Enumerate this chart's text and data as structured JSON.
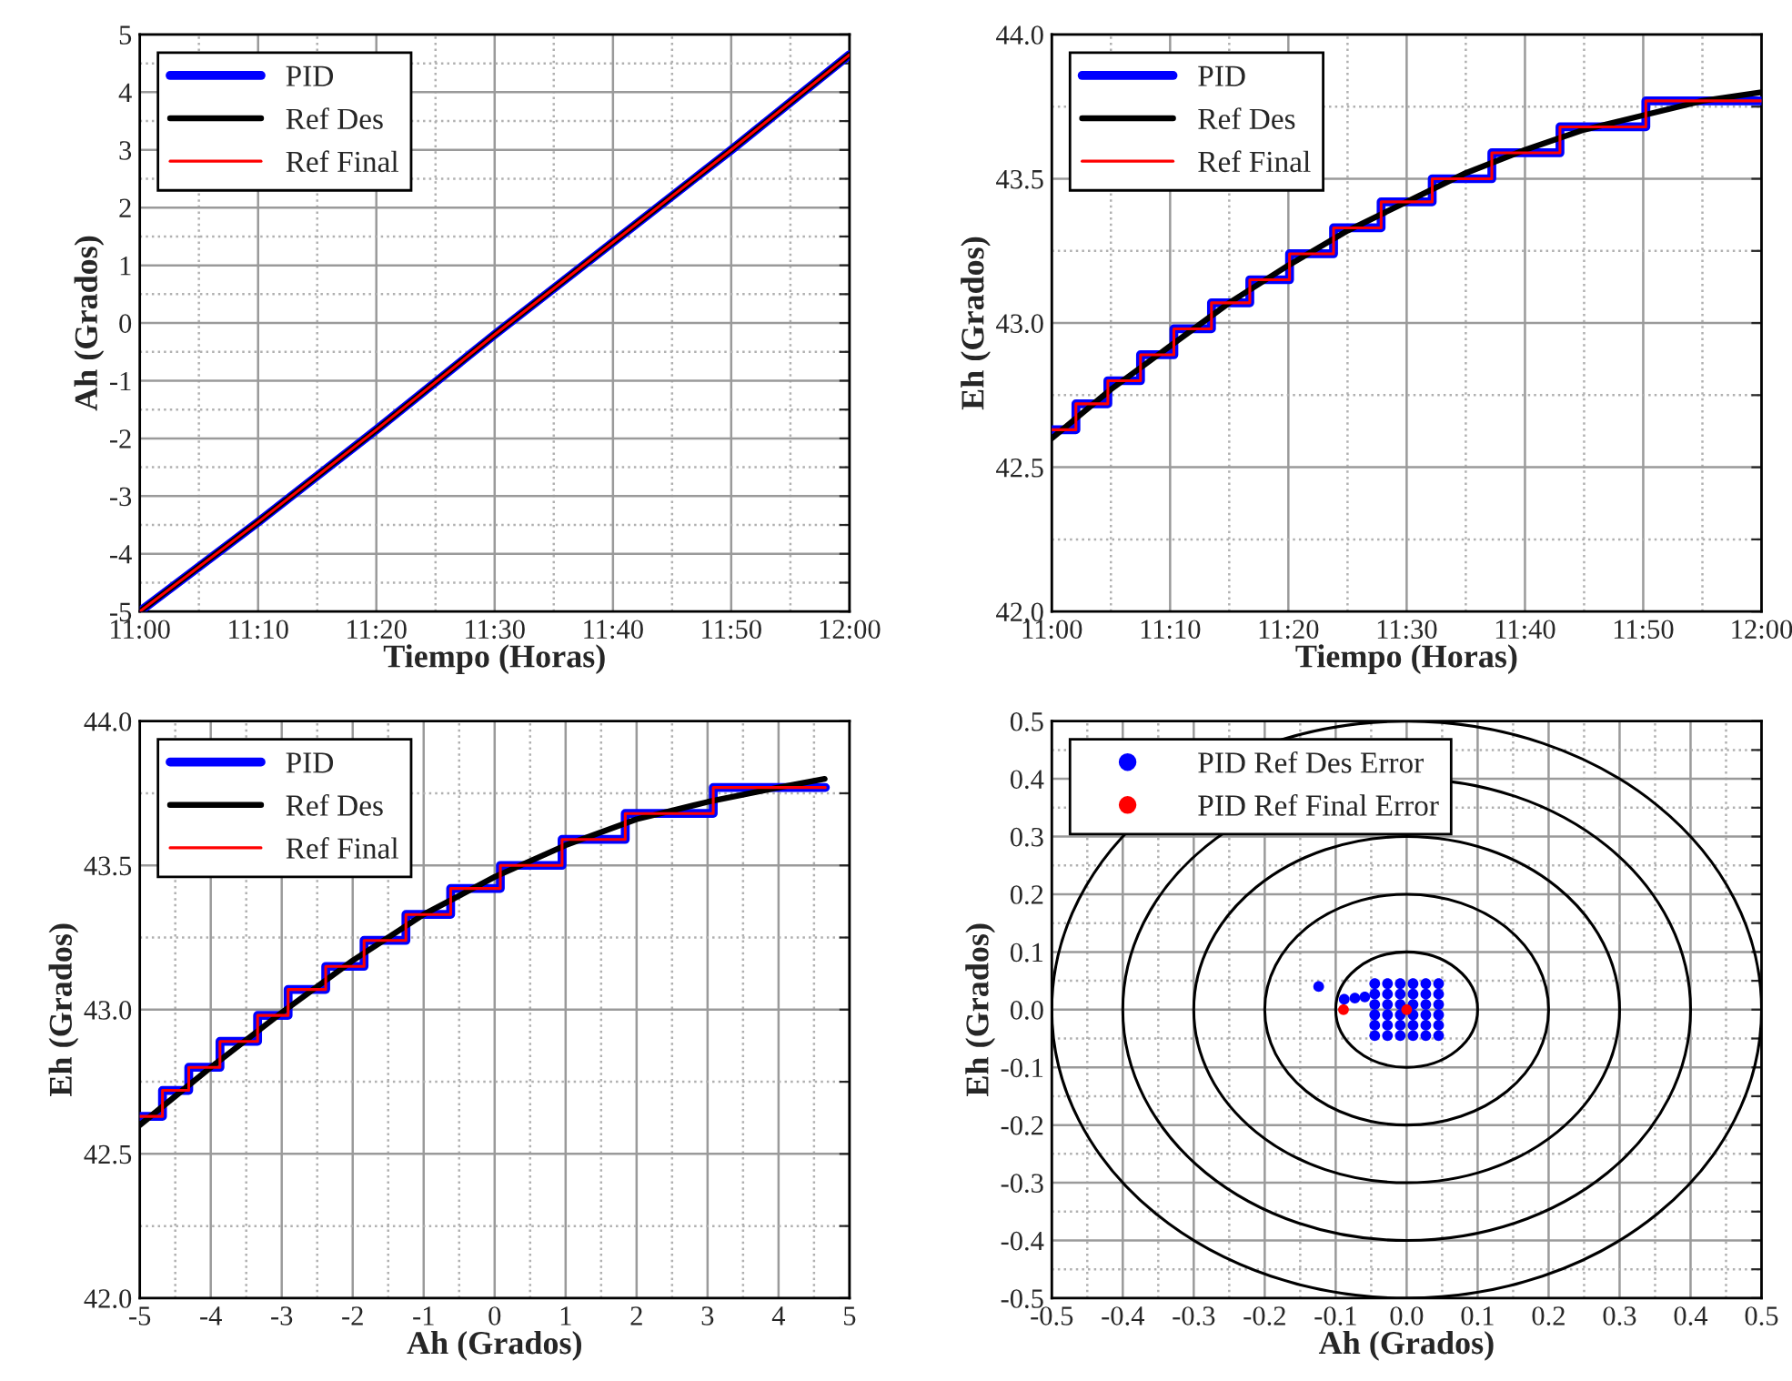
{
  "chart_data": [
    {
      "type": "line",
      "xlabel": "Tiempo (Horas)",
      "ylabel": "Ah (Grados)",
      "legend": "top left",
      "grid": true,
      "xlim": [
        11.0,
        12.0
      ],
      "ylim": [
        -5,
        5
      ],
      "xticks": [
        {
          "value": 11.0,
          "label": "11:00"
        },
        {
          "value": 11.0833,
          "label": null
        },
        {
          "value": 11.1667,
          "label": "11:10"
        },
        {
          "value": 11.25,
          "label": null
        },
        {
          "value": 11.3333,
          "label": "11:20"
        },
        {
          "value": 11.4167,
          "label": null
        },
        {
          "value": 11.5,
          "label": "11:30"
        },
        {
          "value": 11.5833,
          "label": null
        },
        {
          "value": 11.6667,
          "label": "11:40"
        },
        {
          "value": 11.75,
          "label": null
        },
        {
          "value": 11.8333,
          "label": "11:50"
        },
        {
          "value": 11.9167,
          "label": null
        },
        {
          "value": 12.0,
          "label": "12:00"
        }
      ],
      "yticks": [
        -5,
        {
          "value": -4.5,
          "label": null
        },
        -4,
        {
          "value": -3.5,
          "label": null
        },
        -3,
        {
          "value": -2.5,
          "label": null
        },
        -2,
        {
          "value": -1.5,
          "label": null
        },
        -1,
        {
          "value": -0.5,
          "label": null
        },
        0,
        {
          "value": 0.5,
          "label": null
        },
        1,
        {
          "value": 1.5,
          "label": null
        },
        2,
        {
          "value": 2.5,
          "label": null
        },
        3,
        {
          "value": 3.5,
          "label": null
        },
        4,
        {
          "value": 4.5,
          "label": null
        },
        5
      ],
      "series": [
        {
          "name": "PID",
          "color": "#0000ff",
          "x": [
            11.0,
            11.1667,
            11.3333,
            11.5,
            11.6667,
            11.8333,
            12.0
          ],
          "values": [
            -5.0,
            -3.45,
            -1.85,
            -0.2,
            1.4,
            3.0,
            4.65
          ]
        },
        {
          "name": "Ref Des",
          "color": "#000000",
          "x": [
            11.0,
            11.1667,
            11.3333,
            11.5,
            11.6667,
            11.8333,
            12.0
          ],
          "values": [
            -5.0,
            -3.45,
            -1.85,
            -0.2,
            1.4,
            3.0,
            4.65
          ]
        },
        {
          "name": "Ref Final",
          "color": "#ff0000",
          "x": [
            11.0,
            11.1667,
            11.3333,
            11.5,
            11.6667,
            11.8333,
            12.0
          ],
          "values": [
            -5.0,
            -3.45,
            -1.85,
            -0.2,
            1.4,
            3.0,
            4.65
          ]
        }
      ]
    },
    {
      "type": "line",
      "xlabel": "Tiempo (Horas)",
      "ylabel": "Eh (Grados)",
      "legend": "top left",
      "grid": true,
      "xlim": [
        11.0,
        12.0
      ],
      "ylim": [
        42.0,
        44.0
      ],
      "xticks": [
        {
          "value": 11.0,
          "label": "11:00"
        },
        {
          "value": 11.0833,
          "label": null
        },
        {
          "value": 11.1667,
          "label": "11:10"
        },
        {
          "value": 11.25,
          "label": null
        },
        {
          "value": 11.3333,
          "label": "11:20"
        },
        {
          "value": 11.4167,
          "label": null
        },
        {
          "value": 11.5,
          "label": "11:30"
        },
        {
          "value": 11.5833,
          "label": null
        },
        {
          "value": 11.6667,
          "label": "11:40"
        },
        {
          "value": 11.75,
          "label": null
        },
        {
          "value": 11.8333,
          "label": "11:50"
        },
        {
          "value": 11.9167,
          "label": null
        },
        {
          "value": 12.0,
          "label": "12:00"
        }
      ],
      "yticks": [
        {
          "value": 42.0,
          "label": "42.0"
        },
        {
          "value": 42.25,
          "label": null
        },
        {
          "value": 42.5,
          "label": "42.5"
        },
        {
          "value": 42.75,
          "label": null
        },
        {
          "value": 43.0,
          "label": "43.0"
        },
        {
          "value": 43.25,
          "label": null
        },
        {
          "value": 43.5,
          "label": "43.5"
        },
        {
          "value": 43.75,
          "label": null
        },
        {
          "value": 44.0,
          "label": "44.0"
        }
      ],
      "series": [
        {
          "name": "PID",
          "color": "#0000ff",
          "type": "step",
          "x": [
            11.0,
            11.034,
            11.079,
            11.125,
            11.172,
            11.225,
            11.279,
            11.335,
            11.397,
            11.464,
            11.536,
            11.62,
            11.716,
            11.837,
            12.0
          ],
          "values": [
            42.63,
            42.72,
            42.8,
            42.89,
            42.98,
            43.07,
            43.15,
            43.24,
            43.33,
            43.42,
            43.5,
            43.59,
            43.68,
            43.77,
            43.77
          ]
        },
        {
          "name": "Ref Des",
          "color": "#000000",
          "x": [
            11.0,
            11.0833,
            11.1667,
            11.25,
            11.3333,
            11.4167,
            11.5,
            11.5833,
            11.6667,
            11.75,
            11.8333,
            11.9167,
            12.0
          ],
          "values": [
            42.6,
            42.77,
            42.92,
            43.07,
            43.2,
            43.32,
            43.42,
            43.52,
            43.6,
            43.67,
            43.72,
            43.77,
            43.8
          ]
        },
        {
          "name": "Ref Final",
          "color": "#ff0000",
          "type": "step",
          "x": [
            11.0,
            11.034,
            11.079,
            11.125,
            11.172,
            11.225,
            11.279,
            11.335,
            11.397,
            11.464,
            11.536,
            11.62,
            11.716,
            11.837,
            12.0
          ],
          "values": [
            42.63,
            42.72,
            42.8,
            42.89,
            42.98,
            43.07,
            43.15,
            43.24,
            43.33,
            43.42,
            43.5,
            43.59,
            43.68,
            43.77,
            43.77
          ]
        }
      ]
    },
    {
      "type": "line",
      "xlabel": "Ah (Grados)",
      "ylabel": "Eh (Grados)",
      "legend": "top left",
      "grid": true,
      "xlim": [
        -5,
        5
      ],
      "ylim": [
        42.0,
        44.0
      ],
      "xticks": [
        -5,
        {
          "value": -4.5,
          "label": null
        },
        -4,
        {
          "value": -3.5,
          "label": null
        },
        -3,
        {
          "value": -2.5,
          "label": null
        },
        -2,
        {
          "value": -1.5,
          "label": null
        },
        -1,
        {
          "value": -0.5,
          "label": null
        },
        0,
        {
          "value": 0.5,
          "label": null
        },
        1,
        {
          "value": 1.5,
          "label": null
        },
        2,
        {
          "value": 2.5,
          "label": null
        },
        3,
        {
          "value": 3.5,
          "label": null
        },
        4,
        {
          "value": 4.5,
          "label": null
        },
        5
      ],
      "yticks": [
        {
          "value": 42.0,
          "label": "42.0"
        },
        {
          "value": 42.25,
          "label": null
        },
        {
          "value": 42.5,
          "label": "42.5"
        },
        {
          "value": 42.75,
          "label": null
        },
        {
          "value": 43.0,
          "label": "43.0"
        },
        {
          "value": 43.25,
          "label": null
        },
        {
          "value": 43.5,
          "label": "43.5"
        },
        {
          "value": 43.75,
          "label": null
        },
        {
          "value": 44.0,
          "label": "44.0"
        }
      ],
      "series": [
        {
          "name": "PID",
          "color": "#0000ff",
          "type": "step",
          "x": [
            -5.0,
            -4.68,
            -4.31,
            -3.87,
            -3.34,
            -2.91,
            -2.38,
            -1.84,
            -1.25,
            -0.62,
            0.08,
            0.95,
            1.84,
            3.08,
            4.66
          ],
          "values": [
            42.63,
            42.72,
            42.8,
            42.89,
            42.98,
            43.07,
            43.15,
            43.24,
            43.33,
            43.42,
            43.5,
            43.59,
            43.68,
            43.77,
            43.77
          ]
        },
        {
          "name": "Ref Des",
          "color": "#000000",
          "x": [
            -5,
            -4,
            -3,
            -2,
            -1,
            0,
            1,
            2,
            3,
            4,
            4.65
          ],
          "values": [
            42.6,
            42.8,
            42.99,
            43.17,
            43.33,
            43.46,
            43.57,
            43.66,
            43.72,
            43.77,
            43.8
          ]
        },
        {
          "name": "Ref Final",
          "color": "#ff0000",
          "type": "step",
          "x": [
            -5.0,
            -4.68,
            -4.31,
            -3.87,
            -3.34,
            -2.91,
            -2.38,
            -1.84,
            -1.25,
            -0.62,
            0.08,
            0.95,
            1.84,
            3.08,
            4.66
          ],
          "values": [
            42.63,
            42.72,
            42.8,
            42.89,
            42.98,
            43.07,
            43.15,
            43.24,
            43.33,
            43.42,
            43.5,
            43.59,
            43.68,
            43.77,
            43.77
          ]
        }
      ]
    },
    {
      "type": "scatter",
      "xlabel": "Ah (Grados)",
      "ylabel": "Eh (Grados)",
      "legend": "top left",
      "grid": true,
      "marker": "circle",
      "xlim": [
        -0.5,
        0.5
      ],
      "ylim": [
        -0.5,
        0.5
      ],
      "xticks": [
        {
          "value": -0.5,
          "label": "-0.5"
        },
        {
          "value": -0.45,
          "label": null
        },
        {
          "value": -0.4,
          "label": "-0.4"
        },
        {
          "value": -0.35,
          "label": null
        },
        {
          "value": -0.3,
          "label": "-0.3"
        },
        {
          "value": -0.25,
          "label": null
        },
        {
          "value": -0.2,
          "label": "-0.2"
        },
        {
          "value": -0.15,
          "label": null
        },
        {
          "value": -0.1,
          "label": "-0.1"
        },
        {
          "value": -0.05,
          "label": null
        },
        {
          "value": 0.0,
          "label": "0.0"
        },
        {
          "value": 0.05,
          "label": null
        },
        {
          "value": 0.1,
          "label": "0.1"
        },
        {
          "value": 0.15,
          "label": null
        },
        {
          "value": 0.2,
          "label": "0.2"
        },
        {
          "value": 0.25,
          "label": null
        },
        {
          "value": 0.3,
          "label": "0.3"
        },
        {
          "value": 0.35,
          "label": null
        },
        {
          "value": 0.4,
          "label": "0.4"
        },
        {
          "value": 0.45,
          "label": null
        },
        {
          "value": 0.5,
          "label": "0.5"
        }
      ],
      "yticks": [
        {
          "value": -0.5,
          "label": "-0.5"
        },
        {
          "value": -0.45,
          "label": null
        },
        {
          "value": -0.4,
          "label": "-0.4"
        },
        {
          "value": -0.35,
          "label": null
        },
        {
          "value": -0.3,
          "label": "-0.3"
        },
        {
          "value": -0.25,
          "label": null
        },
        {
          "value": -0.2,
          "label": "-0.2"
        },
        {
          "value": -0.15,
          "label": null
        },
        {
          "value": -0.1,
          "label": "-0.1"
        },
        {
          "value": -0.05,
          "label": null
        },
        {
          "value": 0.0,
          "label": "0.0"
        },
        {
          "value": 0.05,
          "label": null
        },
        {
          "value": 0.1,
          "label": "0.1"
        },
        {
          "value": 0.15,
          "label": null
        },
        {
          "value": 0.2,
          "label": "0.2"
        },
        {
          "value": 0.25,
          "label": null
        },
        {
          "value": 0.3,
          "label": "0.3"
        },
        {
          "value": 0.35,
          "label": null
        },
        {
          "value": 0.4,
          "label": "0.4"
        },
        {
          "value": 0.45,
          "label": null
        },
        {
          "value": 0.5,
          "label": "0.5"
        }
      ],
      "series": [
        {
          "name": "PID Ref Des Error",
          "color": "#0000ff",
          "x": [
            -0.124,
            -0.088,
            -0.073,
            -0.059,
            -0.045,
            -0.027,
            -0.009,
            0.009,
            0.027,
            0.045,
            -0.045,
            -0.027,
            -0.009,
            0.009,
            0.027,
            0.045,
            -0.045,
            -0.027,
            -0.009,
            0.009,
            0.027,
            0.045,
            -0.045,
            -0.027,
            -0.009,
            0.009,
            0.027,
            0.045,
            -0.045,
            -0.027,
            -0.009,
            0.009,
            0.027,
            0.045,
            -0.045,
            -0.027,
            -0.009,
            0.009,
            0.027,
            0.045
          ],
          "values": [
            0.04,
            0.018,
            0.02,
            0.022,
            0.045,
            0.045,
            0.045,
            0.045,
            0.045,
            0.045,
            0.027,
            0.027,
            0.027,
            0.027,
            0.027,
            0.027,
            0.009,
            0.009,
            0.009,
            0.009,
            0.009,
            0.009,
            -0.009,
            -0.009,
            -0.009,
            -0.009,
            -0.009,
            -0.009,
            -0.027,
            -0.027,
            -0.027,
            -0.027,
            -0.027,
            -0.027,
            -0.045,
            -0.045,
            -0.045,
            -0.045,
            -0.045,
            -0.045
          ]
        },
        {
          "name": "PID Ref Final Error",
          "color": "#ff0000",
          "x": [
            0.0,
            -0.089
          ],
          "values": [
            0.0,
            0.0
          ]
        }
      ]
    }
  ]
}
